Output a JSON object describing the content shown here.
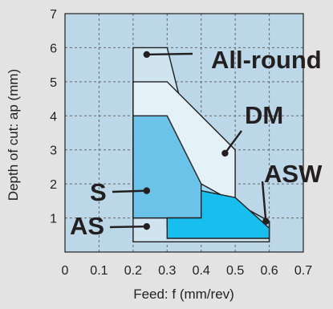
{
  "chart_data": {
    "type": "area",
    "xlabel": "Feed: f (mm/rev)",
    "ylabel": "Depth of cut: ap (mm)",
    "xlim": [
      0,
      0.7
    ],
    "ylim": [
      0,
      7
    ],
    "x_ticks": [
      "0",
      "0.1",
      "0.2",
      "0.3",
      "0.4",
      "0.5",
      "0.6",
      "0.7"
    ],
    "y_ticks": [
      "1",
      "2",
      "3",
      "4",
      "5",
      "6",
      "7"
    ],
    "grid": true,
    "regions": [
      {
        "name": "All-round",
        "color": "#cfe4ef",
        "points": [
          [
            0.2,
            0.3
          ],
          [
            0.2,
            6.0
          ],
          [
            0.3,
            6.0
          ],
          [
            0.4,
            2.0
          ],
          [
            0.6,
            0.9
          ],
          [
            0.6,
            0.3
          ]
        ]
      },
      {
        "name": "DM",
        "color": "#e5f1f8",
        "points": [
          [
            0.2,
            1.0
          ],
          [
            0.2,
            5.0
          ],
          [
            0.3,
            5.0
          ],
          [
            0.5,
            3.0
          ],
          [
            0.5,
            1.0
          ]
        ]
      },
      {
        "name": "S",
        "color": "#6cc3ea",
        "points": [
          [
            0.2,
            1.0
          ],
          [
            0.2,
            4.0
          ],
          [
            0.3,
            4.0
          ],
          [
            0.4,
            2.0
          ],
          [
            0.4,
            1.0
          ]
        ]
      },
      {
        "name": "ASW",
        "color": "#9bdcf5",
        "points": [
          [
            0.4,
            1.0
          ],
          [
            0.4,
            2.0
          ],
          [
            0.6,
            0.9
          ],
          [
            0.6,
            0.7
          ],
          [
            0.3,
            0.7
          ],
          [
            0.3,
            1.0
          ]
        ]
      },
      {
        "name": "AS",
        "color": "#18bfee",
        "points": [
          [
            0.3,
            0.4
          ],
          [
            0.3,
            1.0
          ],
          [
            0.4,
            1.0
          ],
          [
            0.4,
            1.8
          ],
          [
            0.5,
            1.6
          ],
          [
            0.6,
            0.7
          ],
          [
            0.6,
            0.4
          ]
        ]
      }
    ],
    "annotations": [
      {
        "text": "All-round",
        "points_to": [
          0.24,
          5.8
        ]
      },
      {
        "text": "DM",
        "points_to": [
          0.47,
          2.9
        ]
      },
      {
        "text": "ASW",
        "points_to": [
          0.59,
          0.9
        ]
      },
      {
        "text": "S",
        "points_to": [
          0.24,
          1.8
        ]
      },
      {
        "text": "AS",
        "points_to": [
          0.24,
          0.75
        ]
      }
    ]
  }
}
